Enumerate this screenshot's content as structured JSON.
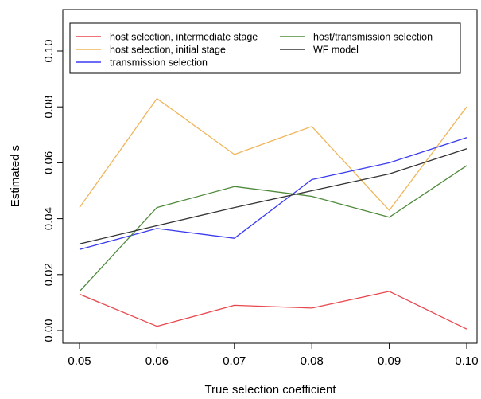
{
  "chart_data": {
    "type": "line",
    "title": "",
    "xlabel": "True selection coefficient",
    "ylabel": "Estimated s",
    "x": [
      0.05,
      0.06,
      0.07,
      0.08,
      0.09,
      0.1
    ],
    "xticks": [
      "0.05",
      "0.06",
      "0.07",
      "0.08",
      "0.09",
      "0.10"
    ],
    "yticks": [
      "0.00",
      "0.02",
      "0.04",
      "0.06",
      "0.08",
      "0.10"
    ],
    "xlim": [
      0.05,
      0.1
    ],
    "ylim": [
      0.0,
      0.1
    ],
    "grid": false,
    "legend_position": "top",
    "series": [
      {
        "name": "host selection, intermediate stage",
        "color": "#e8474d",
        "values": [
          0.013,
          0.0015,
          0.009,
          0.008,
          0.014,
          0.0005
        ]
      },
      {
        "name": "host selection, initial stage",
        "color": "#f0b55a",
        "values": [
          0.044,
          0.083,
          0.063,
          0.073,
          0.043,
          0.08
        ]
      },
      {
        "name": "transmission selection",
        "color": "#3b3bf0",
        "values": [
          0.029,
          0.0365,
          0.033,
          0.054,
          0.06,
          0.069
        ]
      },
      {
        "name": "host/transmission selection",
        "color": "#4f8a3c",
        "values": [
          0.014,
          0.044,
          0.0515,
          0.048,
          0.0405,
          0.059
        ]
      },
      {
        "name": "WF model",
        "color": "#333333",
        "values": [
          0.031,
          0.0375,
          0.044,
          0.05,
          0.056,
          0.065
        ]
      }
    ]
  }
}
